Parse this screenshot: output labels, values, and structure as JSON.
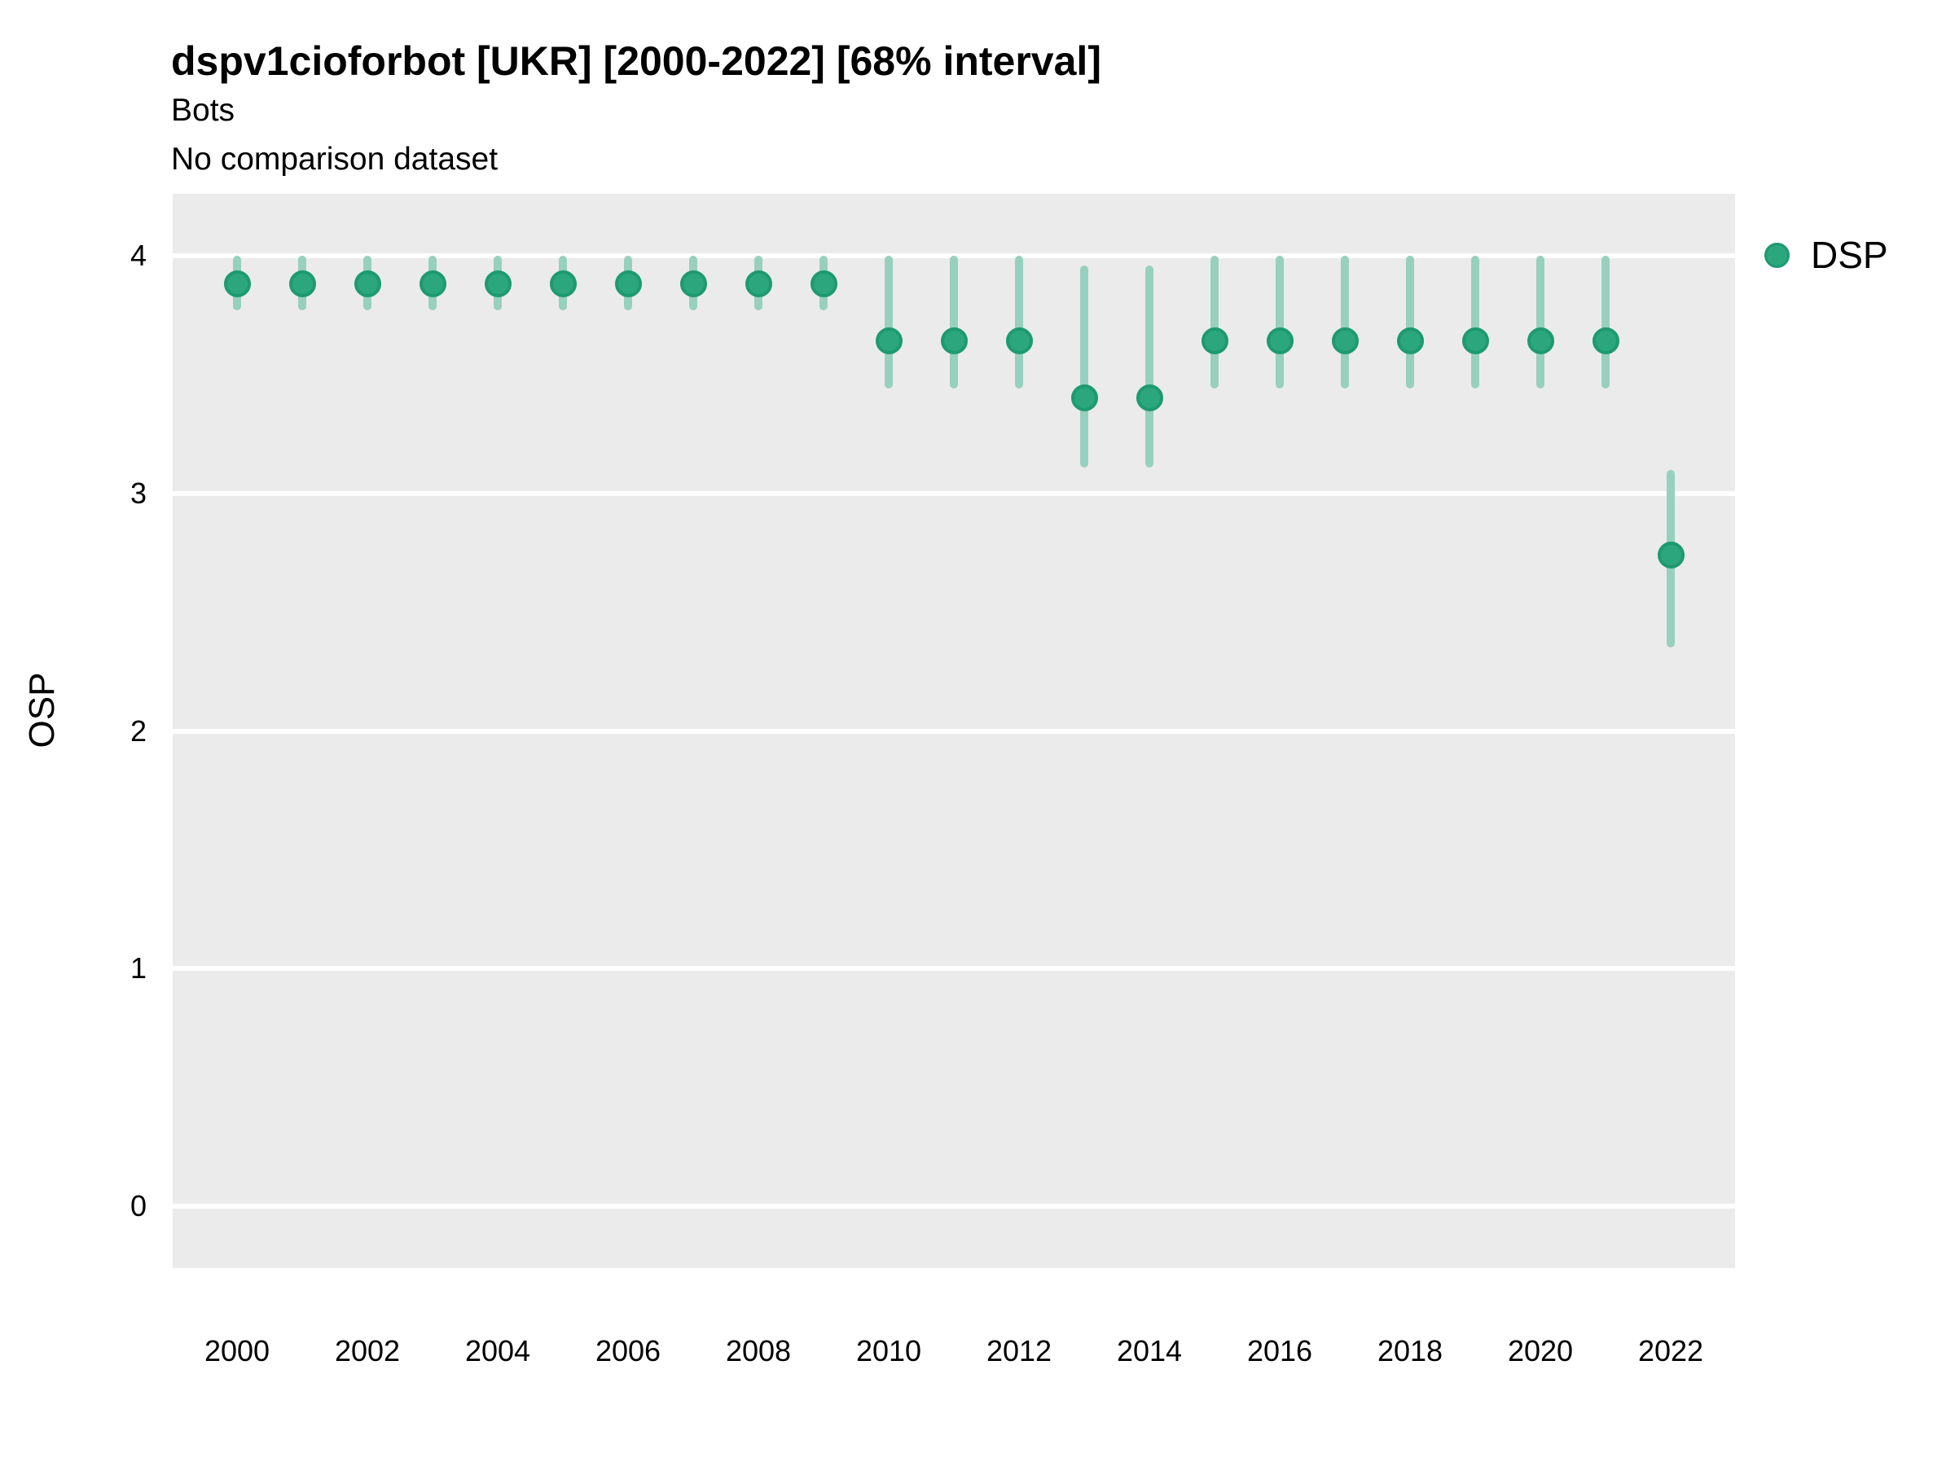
{
  "chart_data": {
    "type": "scatter",
    "title": "dspv1cioforbot [UKR] [2000-2022] [68% interval]",
    "subtitle": "Bots",
    "subtitle2": "No comparison dataset",
    "ylabel": "OSP",
    "xlabel": "",
    "interval": "68%",
    "legend_position": "right-top",
    "grid": "horizontal-major-only",
    "x": [
      2000,
      2001,
      2002,
      2003,
      2004,
      2005,
      2006,
      2007,
      2008,
      2009,
      2010,
      2011,
      2012,
      2013,
      2014,
      2015,
      2016,
      2017,
      2018,
      2019,
      2020,
      2021,
      2022
    ],
    "series": [
      {
        "name": "DSP",
        "values": [
          3.88,
          3.88,
          3.88,
          3.88,
          3.88,
          3.88,
          3.88,
          3.88,
          3.88,
          3.88,
          3.64,
          3.64,
          3.64,
          3.4,
          3.4,
          3.64,
          3.64,
          3.64,
          3.64,
          3.64,
          3.64,
          3.64,
          2.74
        ],
        "lower": [
          3.77,
          3.77,
          3.77,
          3.77,
          3.77,
          3.77,
          3.77,
          3.77,
          3.77,
          3.77,
          3.44,
          3.44,
          3.44,
          3.11,
          3.11,
          3.44,
          3.44,
          3.44,
          3.44,
          3.44,
          3.44,
          3.44,
          2.35
        ],
        "upper": [
          4.0,
          4.0,
          4.0,
          4.0,
          4.0,
          4.0,
          4.0,
          4.0,
          4.0,
          4.0,
          4.0,
          4.0,
          4.0,
          3.96,
          3.96,
          4.0,
          4.0,
          4.0,
          4.0,
          4.0,
          4.0,
          4.0,
          3.1
        ]
      }
    ],
    "x_ticks": [
      "2000",
      "2002",
      "2004",
      "2006",
      "2008",
      "2010",
      "2012",
      "2014",
      "2016",
      "2018",
      "2020",
      "2022"
    ],
    "y_ticks": [
      "4",
      "3",
      "2",
      "1",
      "0"
    ],
    "y_tick_values": [
      4,
      3,
      2,
      1,
      0
    ],
    "ylim": [
      -0.26,
      4.26
    ],
    "colors": {
      "point_fill": "#2ca77d",
      "point_border": "#1e9a6f",
      "interval_bar": "#97d0be",
      "panel_bg": "#ebebeb",
      "gridline": "#ffffff",
      "text": "#000000"
    },
    "legend": {
      "label": "DSP"
    }
  }
}
